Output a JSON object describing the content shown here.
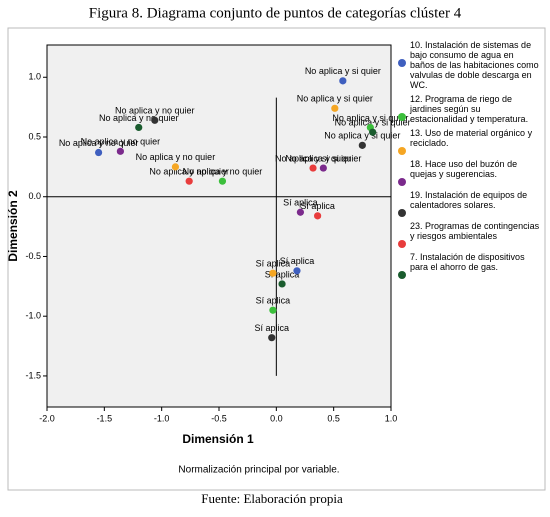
{
  "chart_data": {
    "type": "scatter",
    "title": "Figura 8. Diagrama conjunto de puntos de categorías clúster 4",
    "x_label": "Dimensión 1",
    "y_label": "Dimensión 2",
    "note": "Normalización principal por variable.",
    "source": "Fuente: Elaboración propia",
    "point_labels": [
      "No aplica y si quier",
      "No aplica y no quier",
      "Sí aplica"
    ],
    "xlim": [
      -2.0,
      1.0
    ],
    "ylim": [
      -1.76,
      1.27
    ],
    "xticks": [
      {
        "value": -2.0,
        "label": "-2.0"
      },
      -1.5,
      {
        "value": -1.0,
        "label": "-1.0"
      },
      -0.5,
      {
        "value": 0.0,
        "label": "0.0"
      },
      0.5,
      {
        "value": 1.0,
        "label": "1.0"
      }
    ],
    "yticks": [
      {
        "value": 1.0,
        "label": "1.0"
      },
      0.5,
      {
        "value": 0.0,
        "label": "0.0"
      },
      -0.5,
      {
        "value": -1.0,
        "label": "-1.0"
      },
      -1.5
    ],
    "series": [
      {
        "name": "10. Instalación de sistemas de bajo consumo de agua en baños de las habitaciones como valvulas de doble descarga en WC.",
        "color": "#3f5fbf",
        "x": [
          0.58,
          -1.55,
          0.18
        ],
        "values": [
          0.97,
          0.37,
          -0.62
        ]
      },
      {
        "name": "12. Programa de riego de jardines según su estacionalidad y temperatura.",
        "color": "#3cbf3c",
        "x": [
          0.82,
          -0.47,
          -0.03
        ],
        "values": [
          0.58,
          0.13,
          -0.95
        ]
      },
      {
        "name": "13. Uso de material orgánico y reciclado.",
        "color": "#f5a623",
        "x": [
          0.51,
          -0.88,
          -0.03
        ],
        "values": [
          0.74,
          0.25,
          -0.64
        ]
      },
      {
        "name": "18. Hace uso del buzón de quejas y sugerencias.",
        "color": "#7b2a8c",
        "x": [
          0.41,
          -1.36,
          0.21
        ],
        "values": [
          0.24,
          0.38,
          -0.13
        ]
      },
      {
        "name": "19. Instalación de equipos de calentadores solares.",
        "color": "#333333",
        "x": [
          0.75,
          -1.06,
          -0.04
        ],
        "values": [
          0.43,
          0.64,
          -1.18
        ]
      },
      {
        "name": "23. Programas de contingencias y riesgos ambientales",
        "color": "#e83c3c",
        "x": [
          0.32,
          -0.76,
          0.36
        ],
        "values": [
          0.24,
          0.13,
          -0.16
        ]
      },
      {
        "name": "7. Instalación de dispositivos para el ahorro de gas.",
        "color": "#1a5c2e",
        "x": [
          0.84,
          -1.2,
          0.05
        ],
        "values": [
          0.54,
          0.58,
          -0.73
        ]
      }
    ]
  }
}
